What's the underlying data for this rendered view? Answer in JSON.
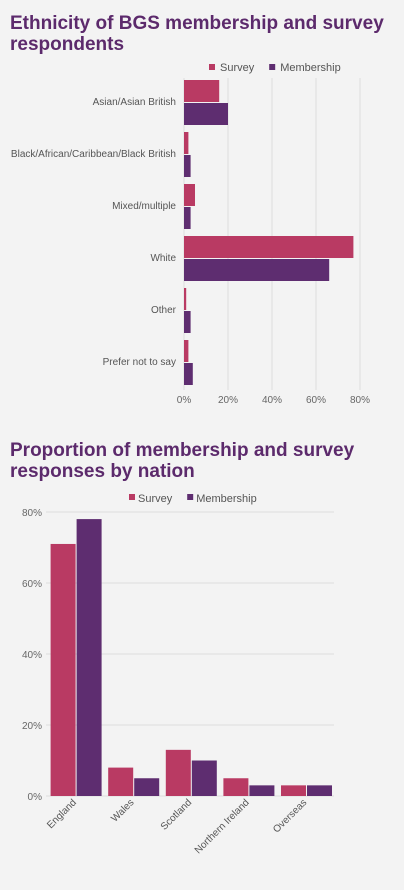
{
  "colors": {
    "survey": "#b93a63",
    "membership": "#5e2d70",
    "title": "#5c2a6c"
  },
  "chart_data": [
    {
      "type": "bar",
      "orientation": "horizontal",
      "title": "Ethnicity of BGS membership and survey respondents",
      "categories": [
        "Asian/Asian British",
        "Black/African/Caribbean/Black British",
        "Mixed/multiple",
        "White",
        "Other",
        "Prefer not to say"
      ],
      "series": [
        {
          "name": "Survey",
          "values": [
            16,
            2,
            5,
            77,
            1,
            2
          ]
        },
        {
          "name": "Membership",
          "values": [
            20,
            3,
            3,
            66,
            3,
            4
          ]
        }
      ],
      "xlim": [
        0,
        80
      ],
      "xticks": [
        "0%",
        "20%",
        "40%",
        "60%",
        "80%"
      ],
      "legend": "top-right",
      "grid": true
    },
    {
      "type": "bar",
      "orientation": "vertical",
      "title": "Proportion of membership and survey responses by nation",
      "categories": [
        "England",
        "Wales",
        "Scotland",
        "Northern Ireland",
        "Overseas"
      ],
      "series": [
        {
          "name": "Survey",
          "values": [
            71,
            8,
            13,
            5,
            3
          ]
        },
        {
          "name": "Membership",
          "values": [
            78,
            5,
            10,
            3,
            3
          ]
        }
      ],
      "ylim": [
        0,
        80
      ],
      "yticks": [
        "0%",
        "20%",
        "40%",
        "60%",
        "80%"
      ],
      "legend": "top",
      "grid": true
    }
  ]
}
